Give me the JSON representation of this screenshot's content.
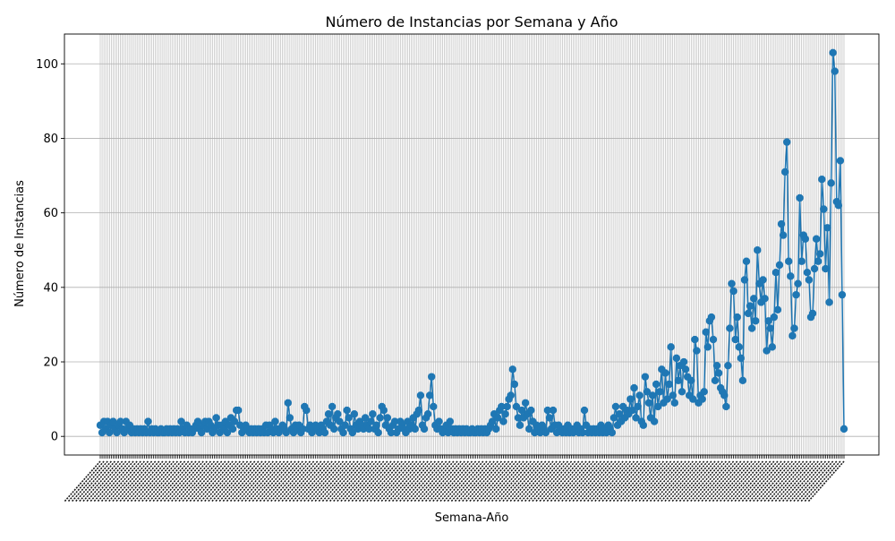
{
  "chart_data": {
    "type": "line",
    "title": "Número de Instancias por Semana y Año",
    "xlabel": "Semana-Año",
    "ylabel": "Número de Instancias",
    "ylim": [
      -5,
      108
    ],
    "y_ticks": [
      0,
      20,
      40,
      60,
      80,
      100
    ],
    "grid": true,
    "legend": "none",
    "colors": {
      "line": "#1f77b4",
      "marker": "#1f77b4",
      "grid": "#b0b0b0"
    },
    "x_ticks_note": "one tick per week; tick labels are rotated and overlap into an illegible dark band",
    "series": [
      {
        "values": [
          3,
          1,
          4,
          2,
          4,
          1,
          3,
          4,
          2,
          1,
          3,
          4,
          2,
          1,
          4,
          2,
          3,
          1,
          2,
          1,
          2,
          1,
          2,
          1,
          2,
          1,
          4,
          1,
          2,
          1,
          2,
          1,
          1,
          2,
          1,
          1,
          2,
          1,
          2,
          1,
          2,
          1,
          2,
          1,
          4,
          2,
          1,
          3,
          1,
          2,
          1,
          2,
          3,
          4,
          2,
          1,
          3,
          4,
          2,
          4,
          3,
          1,
          2,
          5,
          3,
          1,
          3,
          2,
          4,
          1,
          3,
          5,
          2,
          4,
          7,
          7,
          3,
          1,
          2,
          3,
          2,
          1,
          2,
          1,
          2,
          1,
          2,
          1,
          2,
          1,
          3,
          1,
          3,
          2,
          1,
          4,
          2,
          1,
          2,
          3,
          2,
          1,
          9,
          5,
          2,
          1,
          3,
          2,
          3,
          1,
          2,
          8,
          7,
          2,
          3,
          1,
          2,
          3,
          2,
          1,
          3,
          2,
          1,
          4,
          6,
          3,
          8,
          2,
          5,
          6,
          4,
          2,
          1,
          3,
          7,
          5,
          2,
          1,
          6,
          3,
          2,
          4,
          3,
          2,
          5,
          3,
          2,
          4,
          6,
          2,
          3,
          1,
          5,
          8,
          7,
          3,
          5,
          2,
          1,
          3,
          4,
          1,
          2,
          4,
          3,
          2,
          1,
          4,
          2,
          3,
          5,
          2,
          6,
          7,
          11,
          3,
          2,
          5,
          6,
          11,
          16,
          8,
          3,
          2,
          4,
          2,
          1,
          2,
          3,
          1,
          4,
          2,
          1,
          2,
          1,
          2,
          1,
          2,
          1,
          2,
          1,
          1,
          2,
          1,
          1,
          2,
          1,
          2,
          1,
          2,
          1,
          2,
          3,
          4,
          6,
          2,
          5,
          7,
          8,
          4,
          6,
          8,
          10,
          11,
          18,
          14,
          8,
          5,
          3,
          7,
          5,
          9,
          6,
          2,
          7,
          4,
          1,
          3,
          2,
          1,
          3,
          2,
          1,
          7,
          5,
          2,
          7,
          3,
          1,
          3,
          2,
          1,
          2,
          1,
          3,
          1,
          2,
          1,
          2,
          3,
          1,
          2,
          1,
          7,
          3,
          1,
          2,
          1,
          2,
          1,
          2,
          1,
          3,
          1,
          2,
          1,
          3,
          2,
          1,
          5,
          8,
          3,
          6,
          4,
          8,
          5,
          7,
          6,
          10,
          7,
          13,
          5,
          8,
          11,
          4,
          3,
          16,
          12,
          9,
          5,
          11,
          4,
          14,
          8,
          12,
          18,
          9,
          17,
          10,
          14,
          24,
          11,
          9,
          21,
          15,
          19,
          12,
          20,
          18,
          16,
          11,
          15,
          10,
          26,
          23,
          9,
          11,
          10,
          12,
          28,
          24,
          31,
          32,
          26,
          15,
          19,
          17,
          13,
          12,
          11,
          8,
          19,
          29,
          41,
          39,
          26,
          32,
          24,
          21,
          15,
          42,
          47,
          33,
          35,
          29,
          37,
          31,
          50,
          41,
          36,
          42,
          37,
          23,
          31,
          29,
          24,
          32,
          44,
          34,
          46,
          57,
          54,
          71,
          79,
          47,
          43,
          27,
          29,
          38,
          41,
          64,
          47,
          54,
          53,
          44,
          42,
          32,
          33,
          45,
          53,
          47,
          49,
          69,
          61,
          45,
          56,
          36,
          68,
          103,
          98,
          63,
          62,
          74,
          38,
          2
        ]
      }
    ]
  }
}
